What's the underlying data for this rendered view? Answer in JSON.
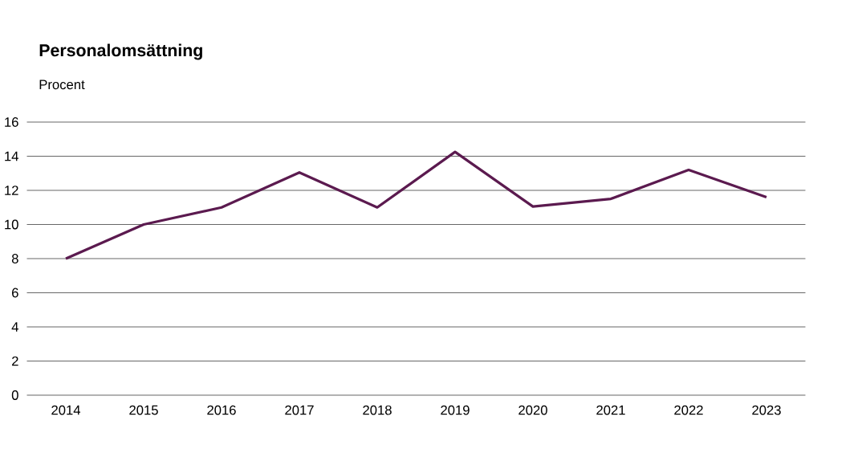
{
  "chart_data": {
    "type": "line",
    "title": "Personalomsättning",
    "ylabel": "Procent",
    "categories": [
      "2014",
      "2015",
      "2016",
      "2017",
      "2018",
      "2019",
      "2020",
      "2021",
      "2022",
      "2023"
    ],
    "series": [
      {
        "color": "#5b1a4f",
        "values": [
          8.0,
          10.0,
          11.0,
          13.05,
          11.0,
          14.25,
          11.05,
          11.5,
          13.2,
          11.6
        ]
      }
    ],
    "ylim": [
      0,
      16
    ],
    "yticks": [
      0,
      2,
      4,
      6,
      8,
      10,
      12,
      14,
      16
    ],
    "grid": "y"
  }
}
